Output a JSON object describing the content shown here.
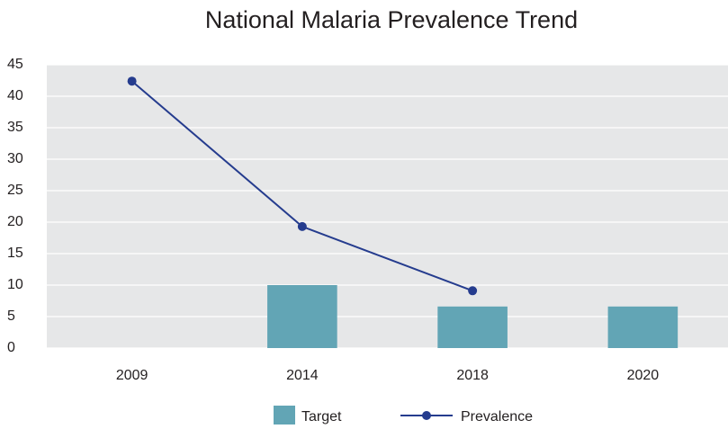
{
  "chart_data": {
    "type": "bar",
    "title": "National Malaria Prevalence Trend",
    "categories": [
      "2009",
      "2014",
      "2018",
      "2020"
    ],
    "series": [
      {
        "name": "Target",
        "type": "bar",
        "color": "#62a5b5",
        "values": [
          null,
          10,
          6.6,
          6.6
        ]
      },
      {
        "name": "Prevalence",
        "type": "line",
        "color": "#253c8e",
        "values": [
          42.4,
          19.3,
          9.1,
          null
        ]
      }
    ],
    "ylim": [
      0,
      45
    ],
    "yticks": [
      0,
      5,
      10,
      15,
      20,
      25,
      30,
      35,
      40,
      45
    ],
    "grid": true,
    "legend": "bottom"
  }
}
